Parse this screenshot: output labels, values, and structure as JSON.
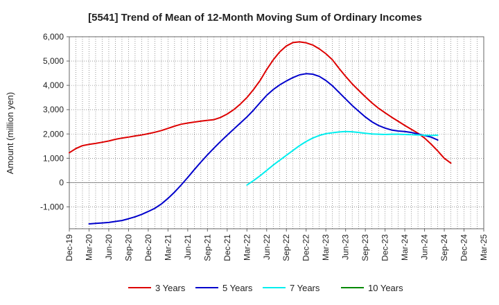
{
  "chart_data": {
    "type": "line",
    "title": "[5541]  Trend of Mean of 12-Month Moving Sum of Ordinary Incomes",
    "xlabel": "",
    "ylabel": "Amount (million yen)",
    "ylim": [
      -1900,
      6000
    ],
    "yticks": [
      -1000,
      0,
      1000,
      2000,
      3000,
      4000,
      5000,
      6000
    ],
    "ytick_labels": [
      "-1,000",
      "0",
      "1,000",
      "2,000",
      "3,000",
      "4,000",
      "5,000",
      "6,000"
    ],
    "x_categories": [
      "Dec-19",
      "Mar-20",
      "Jun-20",
      "Sep-20",
      "Dec-20",
      "Mar-21",
      "Jun-21",
      "Sep-21",
      "Dec-21",
      "Mar-22",
      "Jun-22",
      "Sep-22",
      "Dec-22",
      "Mar-23",
      "Jun-23",
      "Sep-23",
      "Dec-23",
      "Mar-24",
      "Jun-24",
      "Sep-24",
      "Dec-24",
      "Mar-25"
    ],
    "grid": true,
    "legend_position": "bottom",
    "series": [
      {
        "name": "3 Years",
        "color": "#dd0000",
        "start_index": 0,
        "values": [
          1230,
          1400,
          1520,
          1570,
          1610,
          1660,
          1710,
          1780,
          1830,
          1870,
          1920,
          1960,
          2010,
          2070,
          2140,
          2230,
          2320,
          2400,
          2450,
          2490,
          2530,
          2560,
          2590,
          2680,
          2820,
          3000,
          3230,
          3500,
          3830,
          4200,
          4650,
          5050,
          5380,
          5620,
          5760,
          5790,
          5750,
          5660,
          5500,
          5300,
          5050,
          4700,
          4370,
          4060,
          3790,
          3530,
          3280,
          3060,
          2870,
          2690,
          2520,
          2350,
          2190,
          2030,
          1830,
          1580,
          1300,
          1000,
          800
        ]
      },
      {
        "name": "5 Years",
        "color": "#0000cc",
        "start_index": 3,
        "values": [
          -1700,
          -1680,
          -1660,
          -1640,
          -1600,
          -1560,
          -1490,
          -1410,
          -1310,
          -1190,
          -1060,
          -880,
          -650,
          -390,
          -100,
          210,
          530,
          840,
          1140,
          1420,
          1690,
          1950,
          2200,
          2450,
          2700,
          2980,
          3290,
          3590,
          3830,
          4020,
          4180,
          4320,
          4430,
          4480,
          4460,
          4370,
          4200,
          3980,
          3710,
          3440,
          3170,
          2930,
          2700,
          2500,
          2350,
          2240,
          2160,
          2120,
          2100,
          2060,
          2000,
          1940,
          1870,
          1750
        ]
      },
      {
        "name": "7 Years",
        "color": "#00eeee",
        "start_index": 27,
        "values": [
          -100,
          80,
          280,
          500,
          720,
          920,
          1120,
          1320,
          1520,
          1690,
          1830,
          1940,
          2010,
          2050,
          2080,
          2100,
          2090,
          2060,
          2030,
          2000,
          1990,
          1980,
          1990,
          1990,
          1980,
          1970,
          1960,
          1950,
          1940,
          1950
        ]
      },
      {
        "name": "10 Years",
        "color": "#008800",
        "start_index": 0,
        "values": []
      }
    ]
  }
}
